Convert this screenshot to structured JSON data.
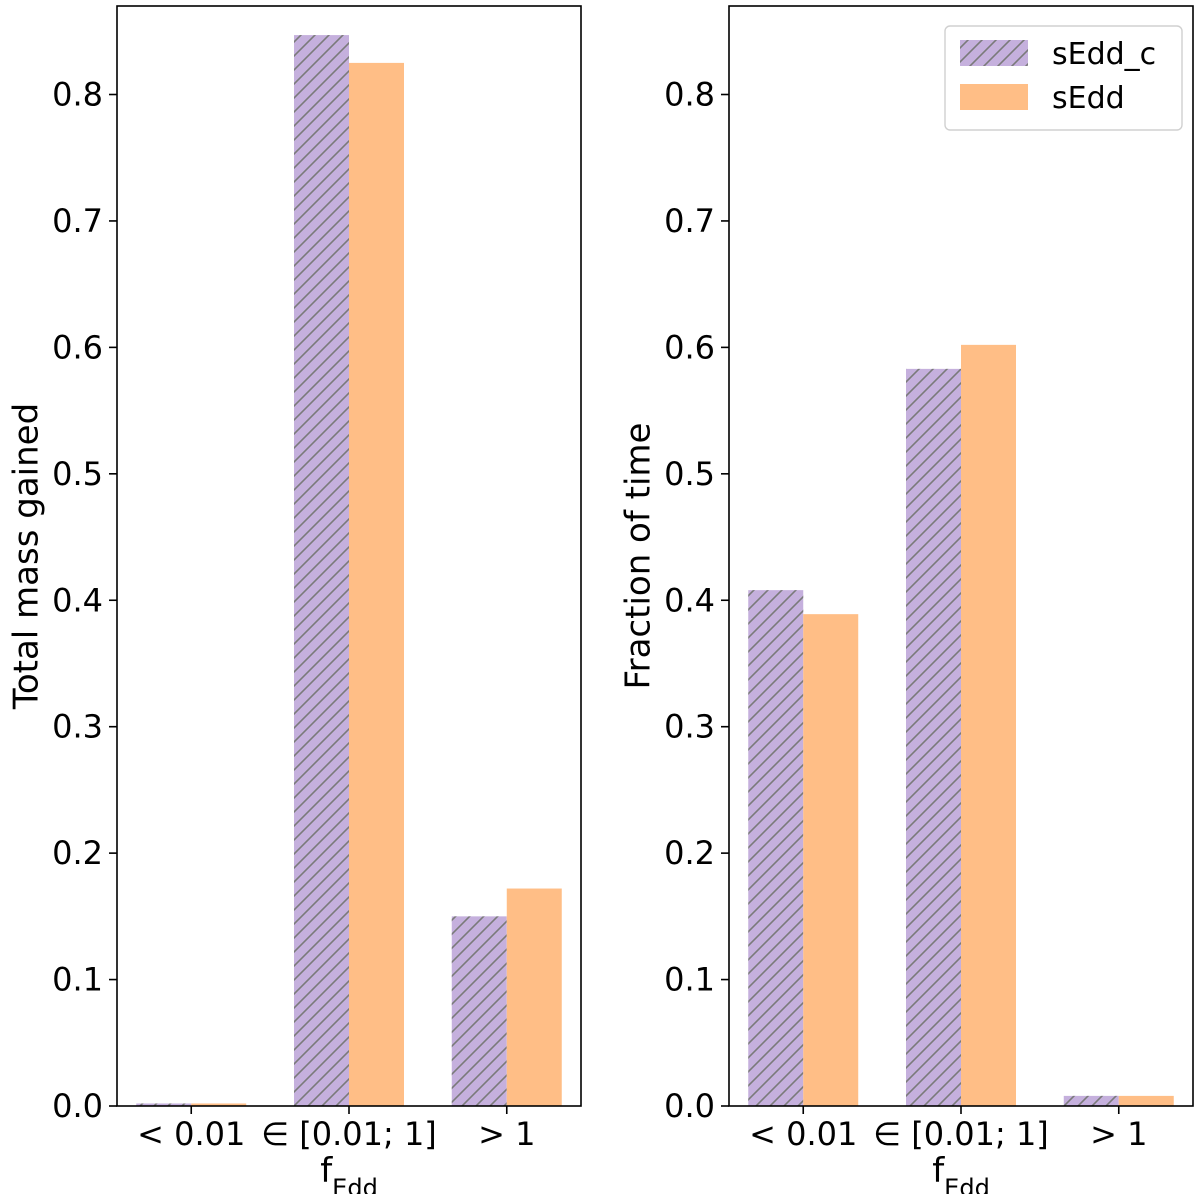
{
  "chart_data": [
    {
      "type": "bar",
      "title": "",
      "xlabel": "f",
      "xlabel_sub": "Edd",
      "ylabel": "Total mass gained",
      "categories": [
        "< 0.01",
        "∈ [0.01; 1]",
        "> 1"
      ],
      "ylim": [
        0,
        0.87
      ],
      "yticks": [
        "0.0",
        "0.1",
        "0.2",
        "0.3",
        "0.4",
        "0.5",
        "0.6",
        "0.7",
        "0.8"
      ],
      "grid": false,
      "series": [
        {
          "name": "sEdd_c",
          "values": [
            0.002,
            0.847,
            0.15
          ]
        },
        {
          "name": "sEdd",
          "values": [
            0.002,
            0.825,
            0.172
          ]
        }
      ]
    },
    {
      "type": "bar",
      "title": "",
      "xlabel": "f",
      "xlabel_sub": "Edd",
      "ylabel": "Fraction of time",
      "categories": [
        "< 0.01",
        "∈ [0.01; 1]",
        "> 1"
      ],
      "ylim": [
        0,
        0.87
      ],
      "yticks": [
        "0.0",
        "0.1",
        "0.2",
        "0.3",
        "0.4",
        "0.5",
        "0.6",
        "0.7",
        "0.8"
      ],
      "grid": false,
      "legend": {
        "location": "top-right",
        "entries": [
          "sEdd_c",
          "sEdd"
        ]
      },
      "series": [
        {
          "name": "sEdd_c",
          "values": [
            0.408,
            0.583,
            0.008
          ]
        },
        {
          "name": "sEdd",
          "values": [
            0.389,
            0.602,
            0.008
          ]
        }
      ]
    }
  ],
  "colors": {
    "sEdd_c": "#c5b0dd",
    "sEdd": "#ffbe86",
    "hatch": "#7a7a7a",
    "axis": "#000000"
  }
}
